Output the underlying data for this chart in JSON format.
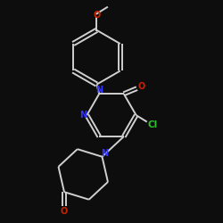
{
  "background_color": "#0d0d0d",
  "bond_color": "#d0d0d0",
  "atom_colors": {
    "N": "#3333ff",
    "O": "#cc2200",
    "Cl": "#33bb33",
    "C": "#d0d0d0"
  },
  "figsize": [
    2.5,
    2.5
  ],
  "dpi": 100,
  "lw": 1.4,
  "fontsize": 7.0
}
